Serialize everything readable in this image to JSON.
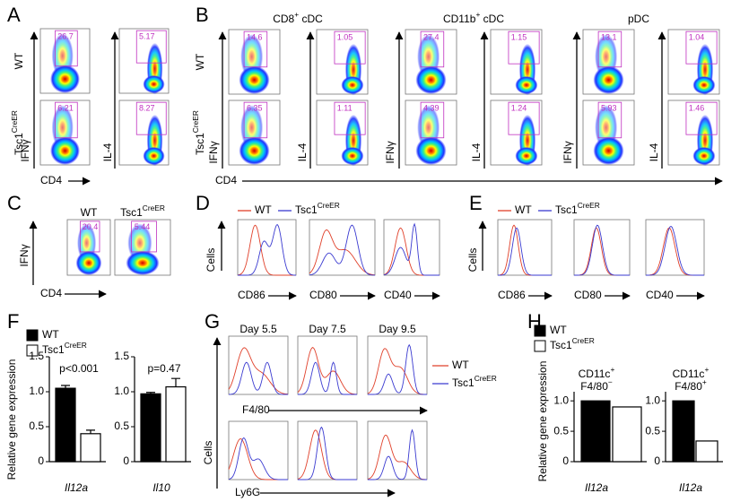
{
  "panel_labels": [
    "A",
    "B",
    "C",
    "D",
    "E",
    "F",
    "G",
    "H"
  ],
  "A": {
    "rows": [
      "WT",
      {
        "text": "Tsc1",
        "sup": "CreER"
      }
    ],
    "y_labels": [
      "IFNγ",
      "IL-4"
    ],
    "x_label": "CD4",
    "gates": [
      [
        26.7,
        5.17
      ],
      [
        6.21,
        8.27
      ]
    ]
  },
  "B": {
    "headers": [
      {
        "text": "CD8",
        "sup": "+",
        "after": " cDC"
      },
      {
        "text": "CD11b",
        "sup": "+",
        "after": " cDC"
      },
      "pDC"
    ],
    "rows": [
      "WT",
      {
        "text": "Tsc1",
        "sup": "CreER"
      }
    ],
    "y_labels": [
      "IFNγ",
      "IL-4"
    ],
    "x_label": "CD4",
    "gates": [
      [
        14.6,
        1.05,
        27.4,
        1.15,
        13.1,
        1.04
      ],
      [
        6.35,
        1.11,
        4.39,
        1.24,
        5.93,
        1.46
      ]
    ]
  },
  "C": {
    "headers": [
      "WT",
      {
        "text": "Tsc1",
        "sup": "CreER"
      }
    ],
    "y_label": "IFNγ",
    "x_label": "CD4",
    "gates": [
      20.4,
      5.44
    ]
  },
  "D": {
    "legend": [
      {
        "name": "WT",
        "color": "#e0402a"
      },
      {
        "name": {
          "text": "Tsc1",
          "sup": "CreER"
        },
        "color": "#3a3ad0"
      }
    ],
    "y_label": "Cells",
    "x_labels": [
      "CD86",
      "CD80",
      "CD40"
    ]
  },
  "E": {
    "legend": [
      {
        "name": "WT",
        "color": "#e0402a"
      },
      {
        "name": {
          "text": "Tsc1",
          "sup": "CreER"
        },
        "color": "#3a3ad0"
      }
    ],
    "y_label": "Cells",
    "x_labels": [
      "CD86",
      "CD80",
      "CD40"
    ]
  },
  "F": {
    "legend": [
      {
        "name": "WT",
        "color": "#000000"
      },
      {
        "name": {
          "text": "Tsc1",
          "sup": "CreER"
        },
        "color": "#ffffff"
      }
    ],
    "y_label": "Relative gene expression"
  },
  "G": {
    "headers": [
      "Day 5.5",
      "Day 7.5",
      "Day 9.5"
    ],
    "x_labels": [
      "F4/80",
      "Ly6G"
    ],
    "y_label": "Cells",
    "legend": [
      {
        "name": "WT",
        "color": "#e0402a"
      },
      {
        "name": {
          "text": "Tsc1",
          "sup": "CreER"
        },
        "color": "#3a3ad0"
      }
    ]
  },
  "H": {
    "legend": [
      {
        "name": "WT",
        "color": "#000000"
      },
      {
        "name": {
          "text": "Tsc1",
          "sup": "CreER"
        },
        "color": "#ffffff"
      }
    ],
    "y_label": "Relative gene expression"
  },
  "chart_data": [
    {
      "type": "bar",
      "annotation": "p<0.001",
      "xlabel": "Il12a",
      "values": [
        1.05,
        0.4
      ],
      "errors": [
        0.04,
        0.05
      ],
      "ylim": [
        0,
        1.5
      ],
      "yticks": [
        0,
        0.5,
        {
          "value": 1,
          "label": "1.0"
        },
        1.5
      ]
    },
    {
      "type": "bar",
      "annotation": "p=0.47",
      "xlabel": "Il10",
      "values": [
        0.97,
        1.07
      ],
      "errors": [
        0.02,
        0.12
      ],
      "ylim": [
        0,
        1.5
      ],
      "yticks": [
        0,
        0.5,
        {
          "value": 1,
          "label": "1.0"
        },
        1.5
      ]
    },
    {
      "type": "bar",
      "title": [
        {
          "text": "CD11c",
          "sup": "+"
        },
        {
          "text": "F4/80",
          "sup": "−"
        }
      ],
      "xlabel": "Il12a",
      "values": [
        1,
        0.9
      ],
      "ylim": [
        0,
        1.15
      ],
      "yticks": [
        0,
        0.5,
        {
          "value": 1,
          "label": "1.0"
        }
      ]
    },
    {
      "type": "bar",
      "title": [
        {
          "text": "CD11c",
          "sup": "+"
        },
        {
          "text": "F4/80",
          "sup": "+"
        }
      ],
      "xlabel": "Il12a",
      "values": [
        1,
        0.34
      ],
      "ylim": [
        0,
        1.15
      ],
      "yticks": [
        0,
        0.5,
        {
          "value": 1,
          "label": "1.0"
        }
      ]
    }
  ]
}
